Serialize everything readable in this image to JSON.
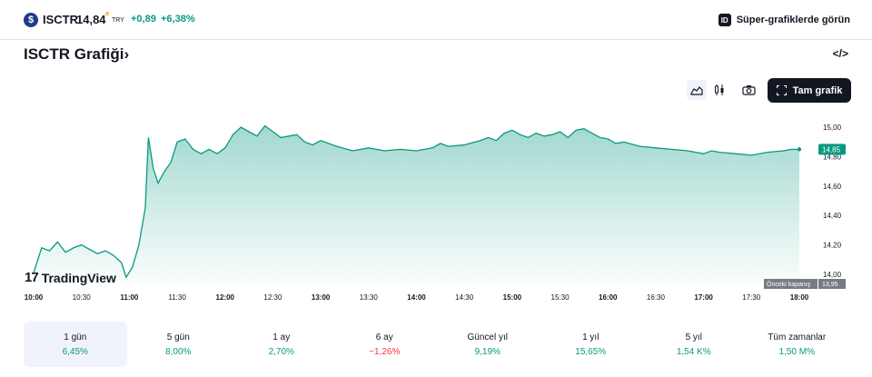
{
  "ticker": {
    "logo_glyph": "$",
    "symbol": "ISCTR",
    "price": "14,84",
    "currency": "TRY",
    "change": "+0,89",
    "change_pct": "+6,38%"
  },
  "header": {
    "super_charts_icon": "ID",
    "super_charts_label": "Süper-grafiklerde görün",
    "chart_title": "ISCTR Grafiği›",
    "embed_icon": "</>"
  },
  "toolbar": {
    "area_icon": "area-chart-icon",
    "candle_icon": "candlestick-icon",
    "camera_icon": "camera-icon",
    "fullscreen_label": "Tam grafik"
  },
  "branding": {
    "mark": "17",
    "name": "TradingView"
  },
  "chart_data": {
    "type": "area",
    "x_ticks": [
      "10:00",
      "10:30",
      "11:00",
      "11:30",
      "12:00",
      "12:30",
      "13:00",
      "13:30",
      "14:00",
      "14:30",
      "15:00",
      "15:30",
      "16:00",
      "16:30",
      "17:00",
      "17:30",
      "18:00"
    ],
    "bold_ticks": [
      "10:00",
      "11:00",
      "12:00",
      "13:00",
      "14:00",
      "15:00",
      "16:00",
      "17:00",
      "18:00"
    ],
    "y_ticks": [
      "15,00",
      "14,80",
      "14,60",
      "14,40",
      "14,20",
      "14,00"
    ],
    "ylim": [
      14.0,
      15.05
    ],
    "xlim": [
      "10:00",
      "18:00"
    ],
    "last_price_label": "14,85",
    "last_price": 14.85,
    "prev_close_label": "Önceki kapanış",
    "prev_close_value": "13,95",
    "line_color": "#089981",
    "points": [
      [
        "10:00",
        14.01
      ],
      [
        "10:05",
        14.18
      ],
      [
        "10:10",
        14.16
      ],
      [
        "10:15",
        14.22
      ],
      [
        "10:20",
        14.15
      ],
      [
        "10:25",
        14.18
      ],
      [
        "10:30",
        14.2
      ],
      [
        "10:35",
        14.17
      ],
      [
        "10:40",
        14.14
      ],
      [
        "10:45",
        14.16
      ],
      [
        "10:50",
        14.13
      ],
      [
        "10:55",
        14.08
      ],
      [
        "10:58",
        13.98
      ],
      [
        "11:02",
        14.05
      ],
      [
        "11:06",
        14.2
      ],
      [
        "11:10",
        14.45
      ],
      [
        "11:12",
        14.93
      ],
      [
        "11:15",
        14.72
      ],
      [
        "11:18",
        14.62
      ],
      [
        "11:22",
        14.7
      ],
      [
        "11:26",
        14.76
      ],
      [
        "11:30",
        14.9
      ],
      [
        "11:35",
        14.92
      ],
      [
        "11:40",
        14.85
      ],
      [
        "11:45",
        14.82
      ],
      [
        "11:50",
        14.85
      ],
      [
        "11:55",
        14.82
      ],
      [
        "12:00",
        14.86
      ],
      [
        "12:05",
        14.95
      ],
      [
        "12:10",
        15.0
      ],
      [
        "12:15",
        14.97
      ],
      [
        "12:20",
        14.94
      ],
      [
        "12:25",
        15.01
      ],
      [
        "12:30",
        14.97
      ],
      [
        "12:35",
        14.93
      ],
      [
        "12:40",
        14.94
      ],
      [
        "12:45",
        14.95
      ],
      [
        "12:50",
        14.9
      ],
      [
        "12:55",
        14.88
      ],
      [
        "13:00",
        14.91
      ],
      [
        "13:10",
        14.87
      ],
      [
        "13:20",
        14.84
      ],
      [
        "13:30",
        14.86
      ],
      [
        "13:40",
        14.84
      ],
      [
        "13:50",
        14.85
      ],
      [
        "14:00",
        14.84
      ],
      [
        "14:10",
        14.86
      ],
      [
        "14:15",
        14.89
      ],
      [
        "14:20",
        14.87
      ],
      [
        "14:30",
        14.88
      ],
      [
        "14:40",
        14.91
      ],
      [
        "14:45",
        14.93
      ],
      [
        "14:50",
        14.91
      ],
      [
        "14:55",
        14.96
      ],
      [
        "15:00",
        14.98
      ],
      [
        "15:05",
        14.95
      ],
      [
        "15:10",
        14.93
      ],
      [
        "15:15",
        14.96
      ],
      [
        "15:20",
        14.94
      ],
      [
        "15:25",
        14.95
      ],
      [
        "15:30",
        14.97
      ],
      [
        "15:35",
        14.93
      ],
      [
        "15:40",
        14.98
      ],
      [
        "15:45",
        14.99
      ],
      [
        "15:50",
        14.96
      ],
      [
        "15:55",
        14.93
      ],
      [
        "16:00",
        14.92
      ],
      [
        "16:05",
        14.89
      ],
      [
        "16:10",
        14.9
      ],
      [
        "16:20",
        14.87
      ],
      [
        "16:30",
        14.86
      ],
      [
        "16:40",
        14.85
      ],
      [
        "16:50",
        14.84
      ],
      [
        "16:55",
        14.83
      ],
      [
        "17:00",
        14.82
      ],
      [
        "17:05",
        14.84
      ],
      [
        "17:10",
        14.83
      ],
      [
        "17:20",
        14.82
      ],
      [
        "17:30",
        14.81
      ],
      [
        "17:40",
        14.83
      ],
      [
        "17:50",
        14.84
      ],
      [
        "17:55",
        14.85
      ],
      [
        "18:00",
        14.85
      ]
    ]
  },
  "periods": [
    {
      "label": "1 gün",
      "value": "6,45%",
      "sign": "pos",
      "active": true
    },
    {
      "label": "5 gün",
      "value": "8,00%",
      "sign": "pos",
      "active": false
    },
    {
      "label": "1 ay",
      "value": "2,70%",
      "sign": "pos",
      "active": false
    },
    {
      "label": "6 ay",
      "value": "−1,26%",
      "sign": "neg",
      "active": false
    },
    {
      "label": "Güncel yıl",
      "value": "9,19%",
      "sign": "pos",
      "active": false
    },
    {
      "label": "1 yıl",
      "value": "15,65%",
      "sign": "pos",
      "active": false
    },
    {
      "label": "5 yıl",
      "value": "1,54 K%",
      "sign": "pos",
      "active": false
    },
    {
      "label": "Tüm zamanlar",
      "value": "1,50 M%",
      "sign": "pos",
      "active": false
    }
  ]
}
